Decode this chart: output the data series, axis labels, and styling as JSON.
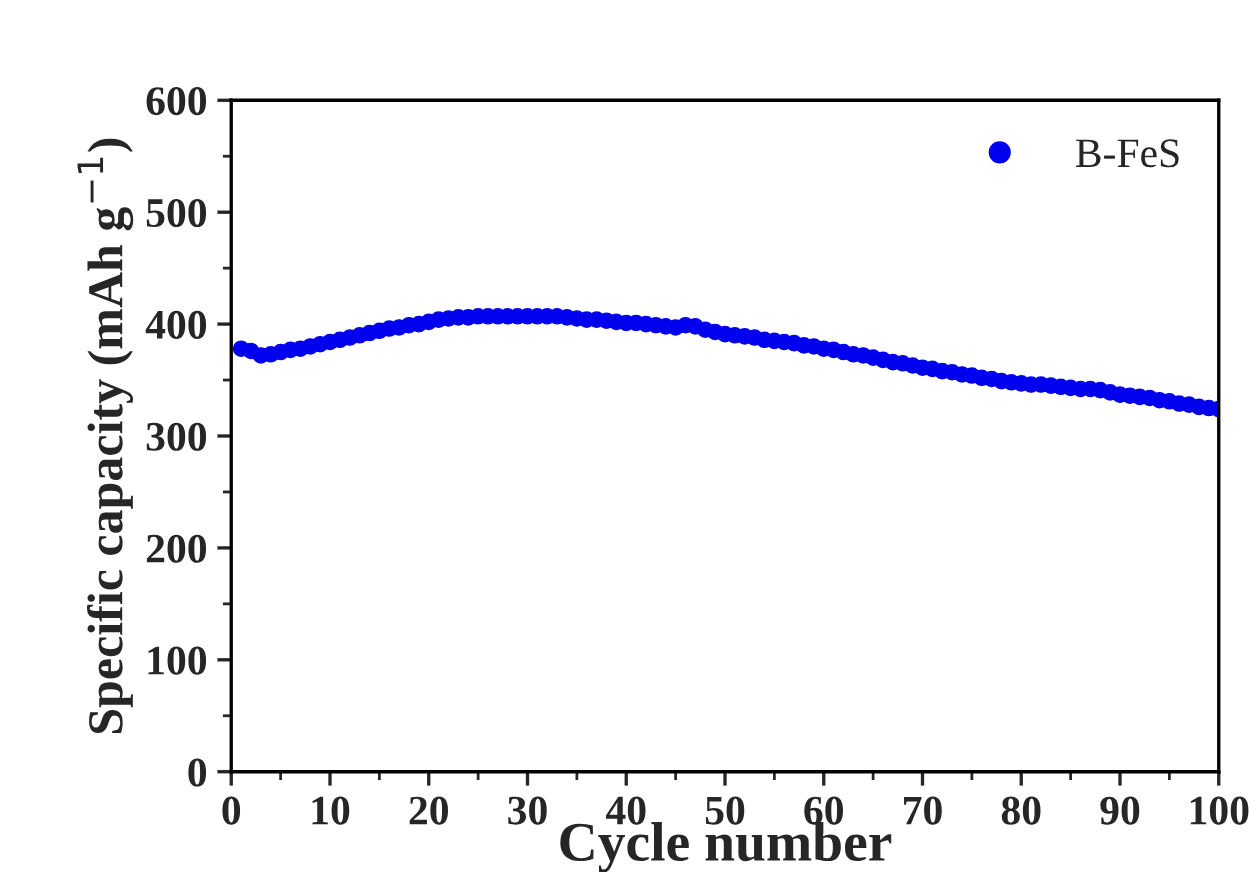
{
  "chart_data": {
    "type": "scatter",
    "xlabel": "Cycle number",
    "ylabel": "Specific capacity (mAh g$^{−1}$)",
    "xlim": [
      0,
      100
    ],
    "xticks": [
      0,
      10,
      20,
      30,
      40,
      50,
      60,
      70,
      80,
      90,
      100
    ],
    "ylim": [
      0,
      600
    ],
    "yticks": [
      0,
      100,
      200,
      300,
      400,
      500,
      600
    ],
    "grid": false,
    "legend": "top right",
    "marker": "circle",
    "series": [
      {
        "name": "B-FeS",
        "color": "#0000ee",
        "x": [
          1,
          2,
          3,
          4,
          5,
          6,
          7,
          8,
          9,
          10,
          11,
          12,
          13,
          14,
          15,
          16,
          17,
          18,
          19,
          20,
          21,
          22,
          23,
          24,
          25,
          26,
          27,
          28,
          29,
          30,
          31,
          32,
          33,
          34,
          35,
          36,
          37,
          38,
          39,
          40,
          41,
          42,
          43,
          44,
          45,
          46,
          47,
          48,
          49,
          50,
          51,
          52,
          53,
          54,
          55,
          56,
          57,
          58,
          59,
          60,
          61,
          62,
          63,
          64,
          65,
          66,
          67,
          68,
          69,
          70,
          71,
          72,
          73,
          74,
          75,
          76,
          77,
          78,
          79,
          80,
          81,
          82,
          83,
          84,
          85,
          86,
          87,
          88,
          89,
          90,
          91,
          92,
          93,
          94,
          95,
          96,
          97,
          98,
          99,
          100
        ],
        "values": [
          378,
          376,
          372,
          373,
          375,
          377,
          378,
          380,
          382,
          384,
          386,
          388,
          390,
          392,
          394,
          396,
          397,
          399,
          400,
          402,
          404,
          405,
          406,
          406,
          407,
          407,
          407,
          407,
          407,
          407,
          407,
          407,
          407,
          406,
          405,
          404,
          404,
          403,
          402,
          401,
          401,
          400,
          399,
          398,
          397,
          399,
          398,
          395,
          393,
          391,
          390,
          389,
          388,
          386,
          385,
          384,
          383,
          381,
          380,
          378,
          377,
          375,
          373,
          372,
          370,
          368,
          366,
          365,
          363,
          361,
          360,
          358,
          357,
          355,
          354,
          352,
          351,
          349,
          348,
          347,
          346,
          346,
          345,
          344,
          343,
          342,
          342,
          341,
          339,
          337,
          336,
          335,
          334,
          332,
          331,
          329,
          328,
          326,
          325,
          324
        ]
      }
    ]
  }
}
